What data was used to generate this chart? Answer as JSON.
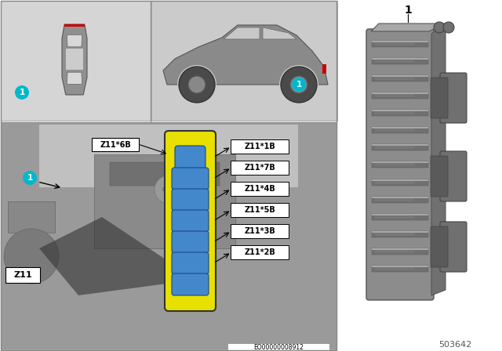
{
  "bg_color": "#ffffff",
  "panel_top_left_bg": "#d8d8d8",
  "panel_top_right_bg": "#cccccc",
  "panel_bottom_bg": "#aaaaaa",
  "cyan_color": "#00b8cc",
  "yellow_color": "#e8e000",
  "blue_conn_color": "#4488cc",
  "blue_conn_dark": "#1a4488",
  "gray_module": "#888888",
  "gray_light": "#aaaaaa",
  "gray_mid": "#999999",
  "gray_dark": "#666666",
  "gray_comp": "#8c8c8c",
  "gray_comp_dark": "#707070",
  "gray_comp_light": "#a8a8a8",
  "red_color": "#cc0000",
  "white": "#ffffff",
  "black": "#000000",
  "part_number": "503642",
  "eo_number": "EO00000008912",
  "connector_labels_right": [
    "Z11*1B",
    "Z11*7B",
    "Z11*4B",
    "Z11*5B",
    "Z11*3B",
    "Z11*2B"
  ],
  "label_left": "Z11*6B",
  "comp_id": "Z11",
  "callout": "1"
}
